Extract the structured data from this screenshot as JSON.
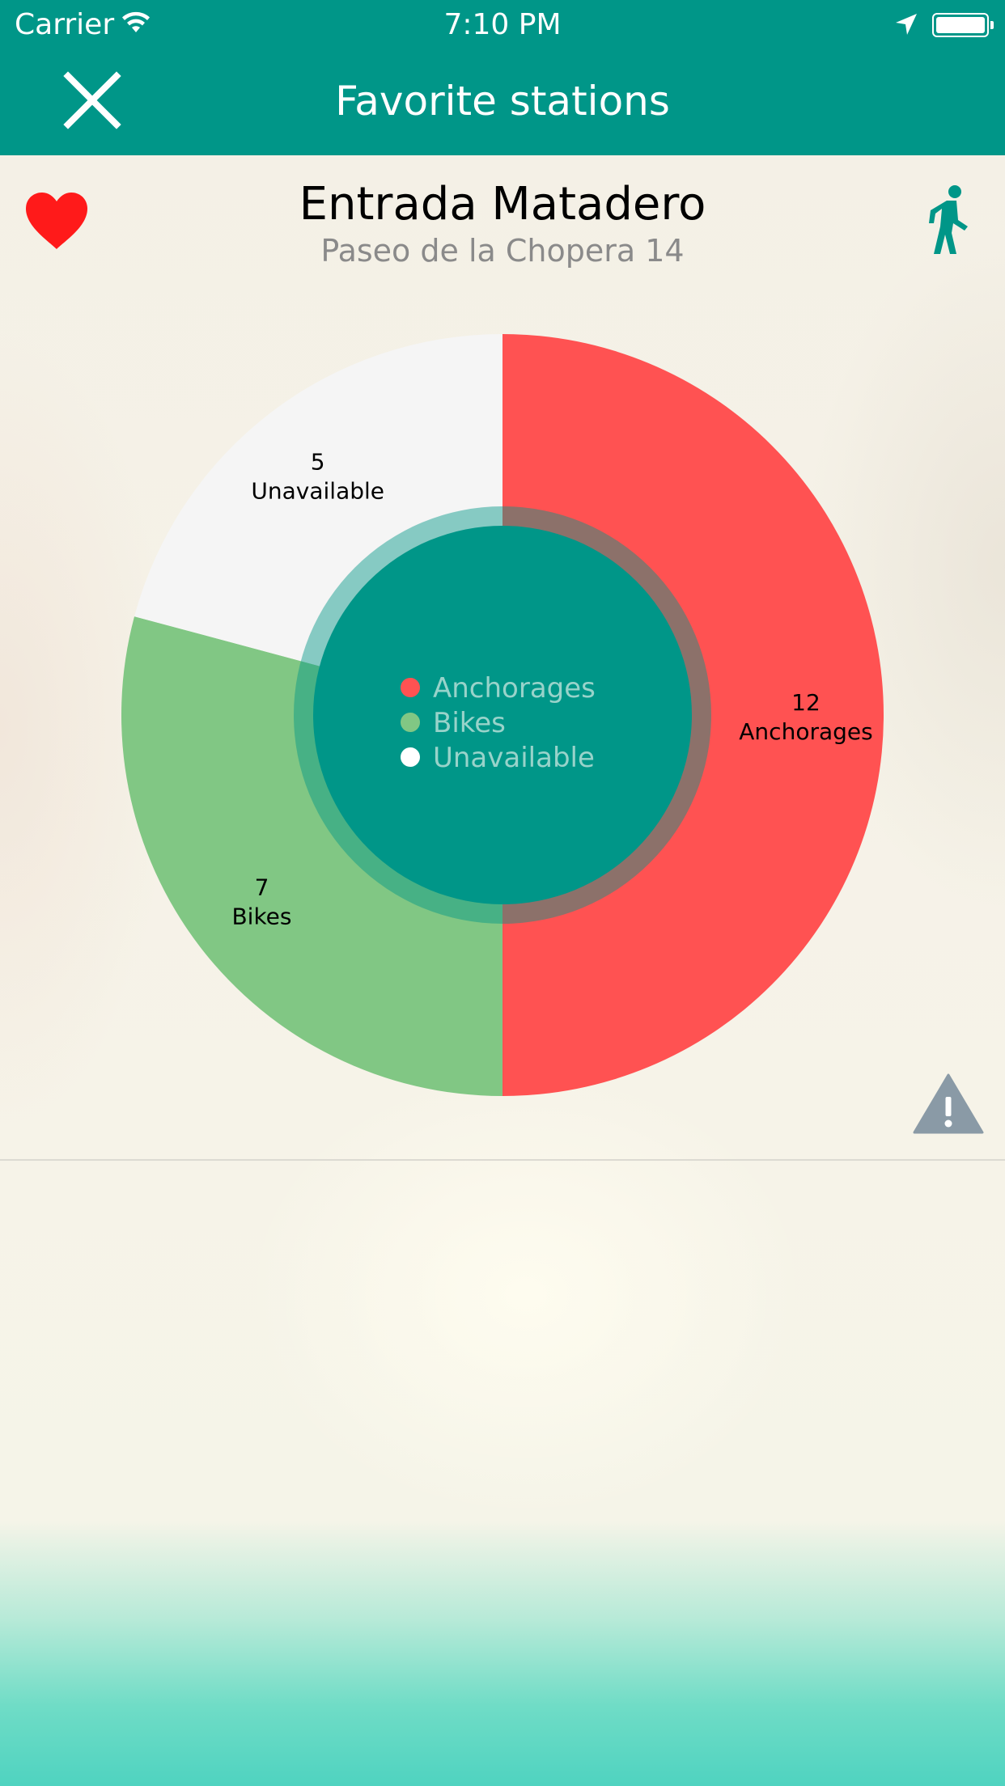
{
  "status_bar": {
    "carrier": "Carrier",
    "time": "7:10 PM"
  },
  "nav": {
    "title": "Favorite stations",
    "close_icon": "close-icon",
    "background_color": "#009688"
  },
  "station": {
    "name": "Entrada Matadero",
    "address": "Paseo de la Chopera 14",
    "favorite_icon": "heart-icon",
    "favorite_color": "#ff1a1a",
    "directions_icon": "walking-person-icon",
    "report_icon": "warning-triangle-icon"
  },
  "chart_data": {
    "type": "pie",
    "donut": true,
    "slices": [
      {
        "label": "Anchorages",
        "value": 12,
        "color": "#ff5252"
      },
      {
        "label": "Bikes",
        "value": 7,
        "color": "#81c784"
      },
      {
        "label": "Unavailable",
        "value": 5,
        "color": "#f5f5f5"
      }
    ],
    "legend": {
      "placement": "center",
      "text_color": "#98d3ca",
      "entries": [
        {
          "label": "Anchorages",
          "color": "#ff5252"
        },
        {
          "label": "Bikes",
          "color": "#81c784"
        },
        {
          "label": "Unavailable",
          "color": "#ffffff"
        }
      ]
    },
    "center_color": "#009688"
  }
}
